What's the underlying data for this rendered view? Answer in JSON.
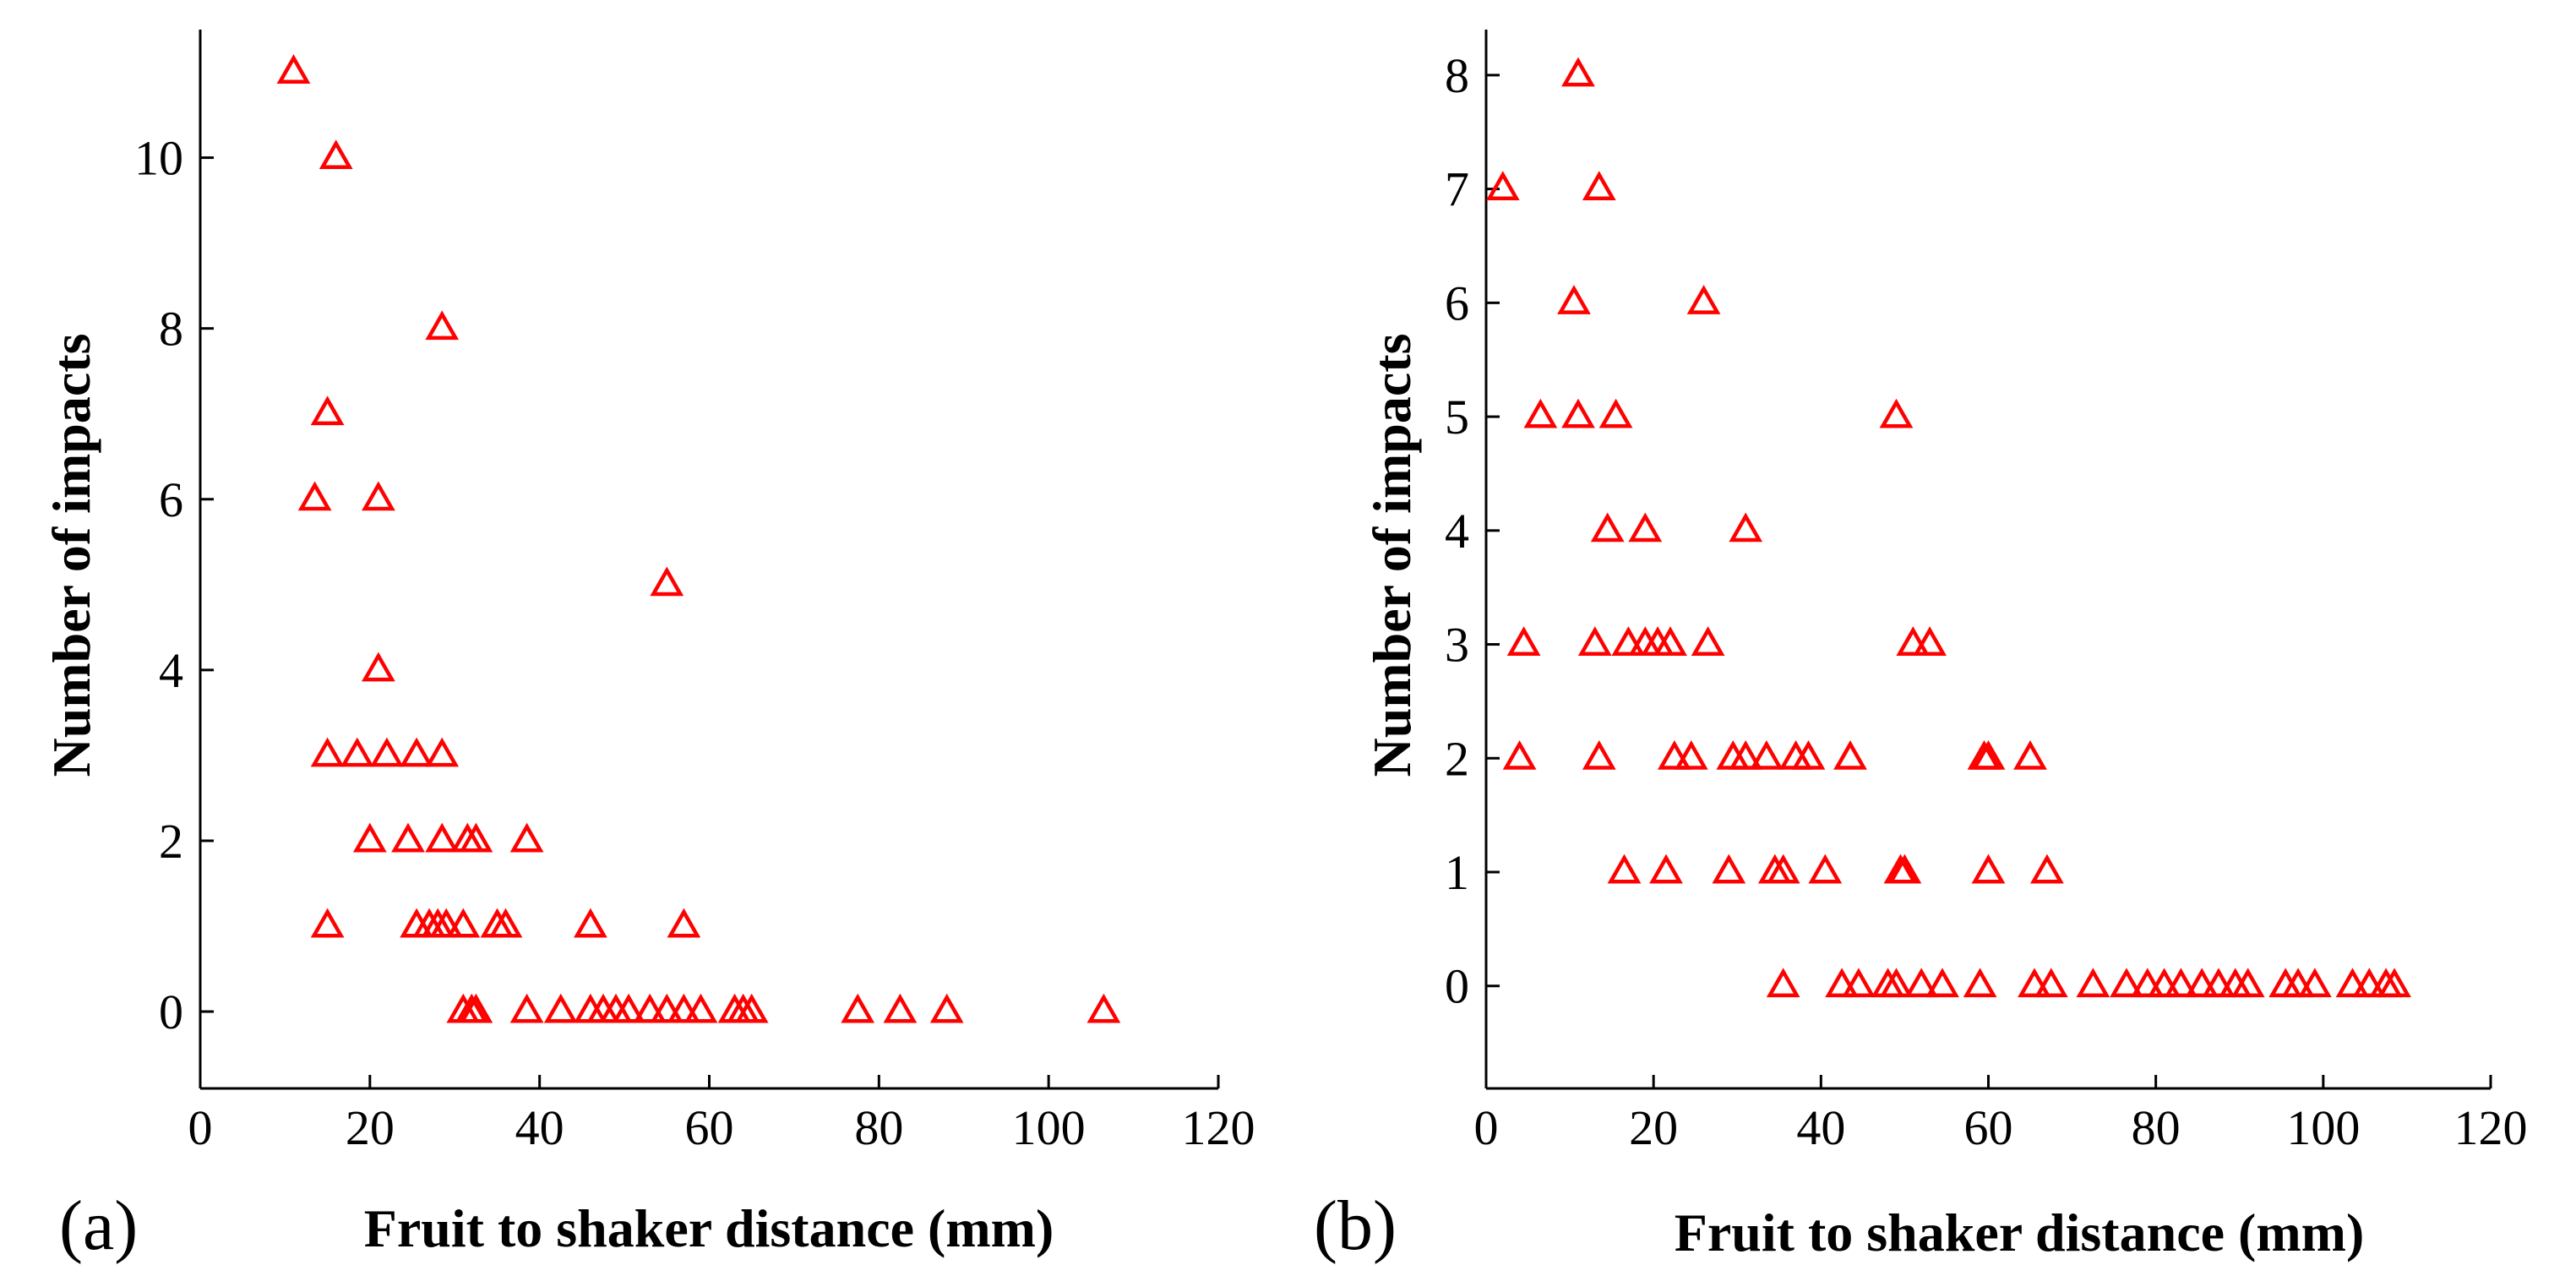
{
  "colors": {
    "marker": "#ff0000",
    "axis": "#000000"
  },
  "chart_data": [
    {
      "type": "scatter",
      "panel_label": "(a)",
      "title": "",
      "xlabel": "Fruit to shaker distance (mm)",
      "ylabel": "Number of impacts",
      "xlim": [
        0,
        120
      ],
      "ylim": [
        -0.9,
        11.5
      ],
      "xticks": [
        0,
        20,
        40,
        60,
        80,
        100,
        120
      ],
      "yticks": [
        0,
        2,
        4,
        6,
        8,
        10
      ],
      "marker": "open-triangle",
      "points": [
        [
          11,
          11
        ],
        [
          16,
          10
        ],
        [
          28.5,
          8
        ],
        [
          15,
          7
        ],
        [
          13.5,
          6
        ],
        [
          21,
          6
        ],
        [
          55,
          5
        ],
        [
          21,
          4
        ],
        [
          15,
          3
        ],
        [
          18.5,
          3
        ],
        [
          22,
          3
        ],
        [
          25.5,
          3
        ],
        [
          28.5,
          3
        ],
        [
          20,
          2
        ],
        [
          24.5,
          2
        ],
        [
          28.5,
          2
        ],
        [
          31.5,
          2
        ],
        [
          32.5,
          2
        ],
        [
          38.5,
          2
        ],
        [
          15,
          1
        ],
        [
          25.5,
          1
        ],
        [
          27,
          1
        ],
        [
          28,
          1
        ],
        [
          29,
          1
        ],
        [
          31,
          1
        ],
        [
          35,
          1
        ],
        [
          36,
          1
        ],
        [
          46,
          1
        ],
        [
          57,
          1
        ],
        [
          31,
          0
        ],
        [
          32,
          0
        ],
        [
          32.5,
          0
        ],
        [
          38.5,
          0
        ],
        [
          42.5,
          0
        ],
        [
          46,
          0
        ],
        [
          47.5,
          0
        ],
        [
          49,
          0
        ],
        [
          50.5,
          0
        ],
        [
          53,
          0
        ],
        [
          55,
          0
        ],
        [
          57,
          0
        ],
        [
          59,
          0
        ],
        [
          63,
          0
        ],
        [
          64,
          0
        ],
        [
          65,
          0
        ],
        [
          77.5,
          0
        ],
        [
          82.5,
          0
        ],
        [
          88,
          0
        ],
        [
          106.5,
          0
        ]
      ]
    },
    {
      "type": "scatter",
      "panel_label": "(b)",
      "title": "",
      "xlabel": "Fruit to shaker distance (mm)",
      "ylabel": "Number of impacts",
      "xlim": [
        0,
        120
      ],
      "ylim": [
        -0.9,
        8.4
      ],
      "xticks": [
        0,
        20,
        40,
        60,
        80,
        100,
        120
      ],
      "yticks": [
        0,
        1,
        2,
        3,
        4,
        5,
        6,
        7,
        8
      ],
      "marker": "open-triangle",
      "points": [
        [
          11,
          8
        ],
        [
          2,
          7
        ],
        [
          13.5,
          7
        ],
        [
          10.5,
          6
        ],
        [
          26,
          6
        ],
        [
          6.5,
          5
        ],
        [
          11,
          5
        ],
        [
          15.5,
          5
        ],
        [
          49,
          5
        ],
        [
          14.5,
          4
        ],
        [
          19,
          4
        ],
        [
          31,
          4
        ],
        [
          4.5,
          3
        ],
        [
          13,
          3
        ],
        [
          17,
          3
        ],
        [
          19,
          3
        ],
        [
          20.5,
          3
        ],
        [
          22,
          3
        ],
        [
          26.5,
          3
        ],
        [
          51,
          3
        ],
        [
          53,
          3
        ],
        [
          4,
          2
        ],
        [
          13.5,
          2
        ],
        [
          22.5,
          2
        ],
        [
          24.5,
          2
        ],
        [
          29.5,
          2
        ],
        [
          31,
          2
        ],
        [
          33.5,
          2
        ],
        [
          37,
          2
        ],
        [
          38.5,
          2
        ],
        [
          43.5,
          2
        ],
        [
          59.5,
          2
        ],
        [
          60,
          2
        ],
        [
          65,
          2
        ],
        [
          16.5,
          1
        ],
        [
          21.5,
          1
        ],
        [
          29,
          1
        ],
        [
          34.5,
          1
        ],
        [
          35.5,
          1
        ],
        [
          40.5,
          1
        ],
        [
          49.5,
          1
        ],
        [
          50,
          1
        ],
        [
          60,
          1
        ],
        [
          67,
          1
        ],
        [
          35.5,
          0
        ],
        [
          42.5,
          0
        ],
        [
          44.5,
          0
        ],
        [
          48,
          0
        ],
        [
          49,
          0
        ],
        [
          52,
          0
        ],
        [
          54.5,
          0
        ],
        [
          59,
          0
        ],
        [
          65.5,
          0
        ],
        [
          67.5,
          0
        ],
        [
          72.5,
          0
        ],
        [
          76.5,
          0
        ],
        [
          79,
          0
        ],
        [
          81,
          0
        ],
        [
          83,
          0
        ],
        [
          85.5,
          0
        ],
        [
          87.5,
          0
        ],
        [
          89.5,
          0
        ],
        [
          91,
          0
        ],
        [
          95.5,
          0
        ],
        [
          97,
          0
        ],
        [
          99,
          0
        ],
        [
          103.5,
          0
        ],
        [
          105.5,
          0
        ],
        [
          107.5,
          0
        ],
        [
          108.5,
          0
        ]
      ]
    }
  ]
}
